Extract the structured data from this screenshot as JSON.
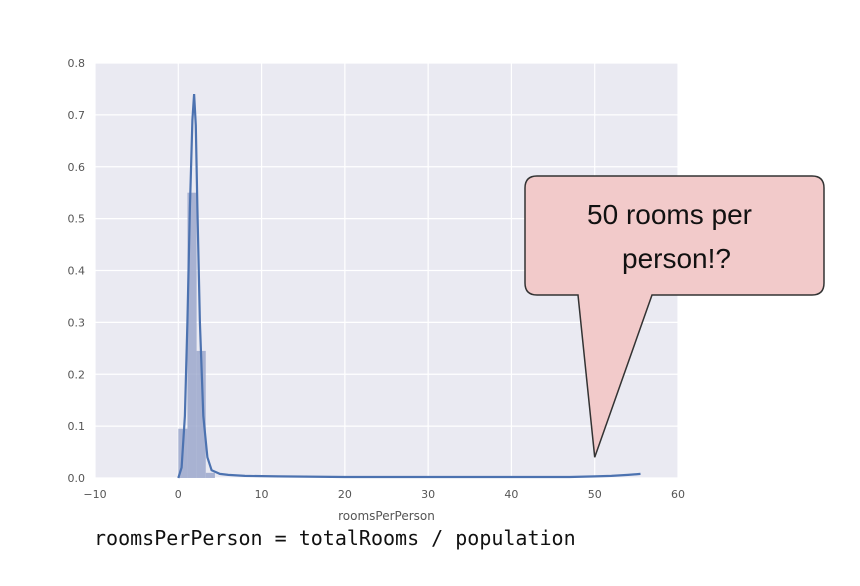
{
  "chart_data": {
    "type": "histogram",
    "xlabel": "roomsPerPerson",
    "ylabel": "",
    "xlim": [
      -10,
      60
    ],
    "ylim": [
      0,
      0.8
    ],
    "xticks": [
      -10,
      0,
      10,
      20,
      30,
      40,
      50,
      60
    ],
    "yticks": [
      0.0,
      0.1,
      0.2,
      0.3,
      0.4,
      0.5,
      0.6,
      0.7,
      0.8
    ],
    "grid": true,
    "bars": [
      {
        "x0": 0.0,
        "x1": 1.1,
        "value": 0.095
      },
      {
        "x0": 1.1,
        "x1": 2.2,
        "value": 0.55
      },
      {
        "x0": 2.2,
        "x1": 3.3,
        "value": 0.245
      },
      {
        "x0": 3.3,
        "x1": 4.4,
        "value": 0.01
      }
    ],
    "kde": {
      "x": [
        0.0,
        0.4,
        0.8,
        1.1,
        1.4,
        1.7,
        1.9,
        2.1,
        2.3,
        2.6,
        3.0,
        3.5,
        4.0,
        5.0,
        6.0,
        8.0,
        12.0,
        20.0,
        30.0,
        40.0,
        47.0,
        50.0,
        52.0,
        54.0,
        55.5
      ],
      "y": [
        0.0,
        0.02,
        0.12,
        0.3,
        0.52,
        0.69,
        0.74,
        0.68,
        0.52,
        0.3,
        0.12,
        0.04,
        0.015,
        0.008,
        0.006,
        0.004,
        0.003,
        0.002,
        0.002,
        0.002,
        0.002,
        0.003,
        0.004,
        0.006,
        0.008
      ]
    }
  },
  "callout": {
    "lines": [
      "50 rooms per",
      "person!?"
    ],
    "pointer_value": {
      "x": 50,
      "y": 0.04
    }
  },
  "caption": "roomsPerPerson = totalRooms / population",
  "colors": {
    "plot_background": "#EAEAF2",
    "grid": "#FFFFFF",
    "bar_fill": "#9CA8CD",
    "kde_line": "#4C72B0",
    "callout_fill": "#F2CACA",
    "callout_stroke": "#333333"
  }
}
